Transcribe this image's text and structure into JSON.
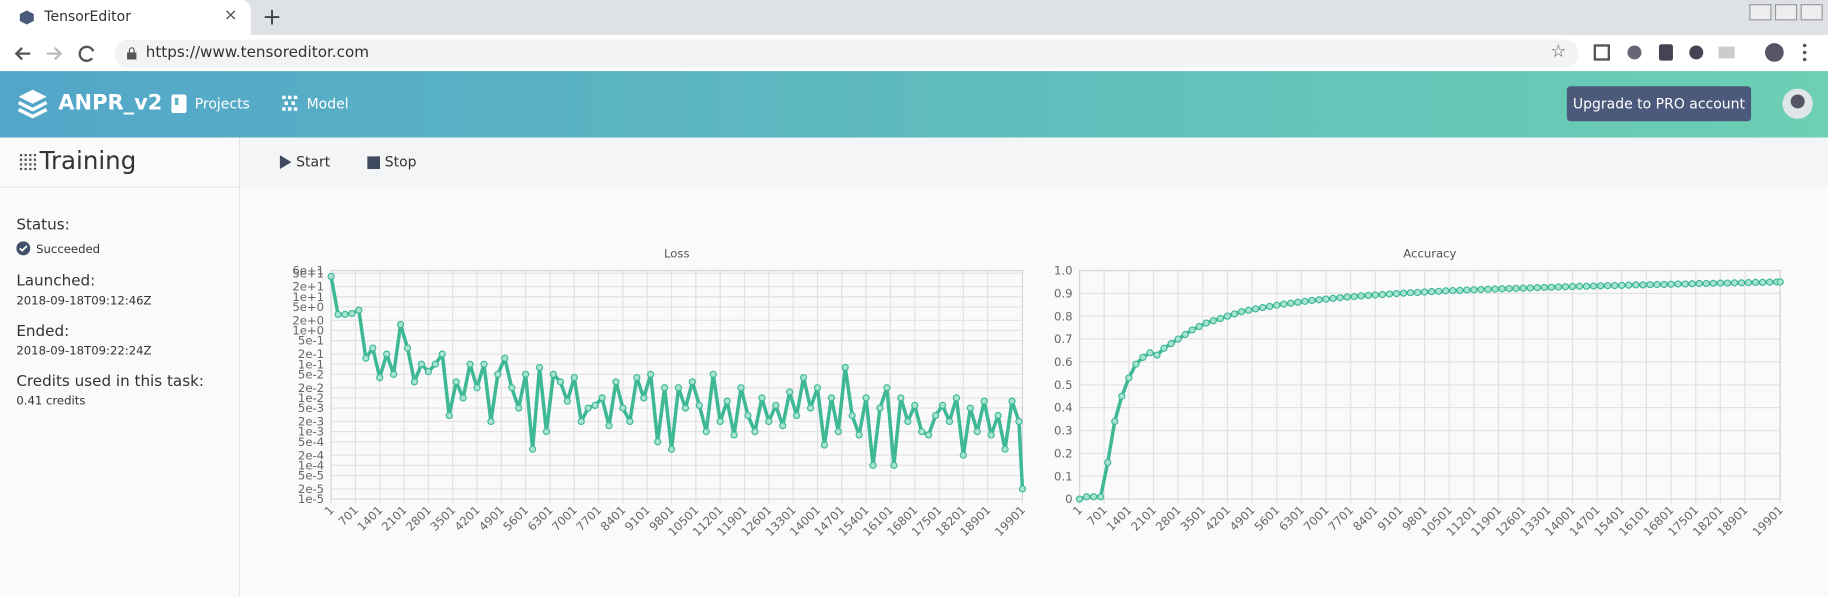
{
  "browser": {
    "tab_title": "TensorEditor",
    "url": "https://www.tensoreditor.com"
  },
  "header": {
    "project": "ANPR_v2",
    "nav": [
      "Projects",
      "Model"
    ],
    "upgrade_button": "Upgrade to PRO account"
  },
  "toolbar": {
    "start": "Start",
    "stop": "Stop"
  },
  "sidebar": {
    "title": "Training",
    "status_label": "Status:",
    "status": "Succeeded",
    "launched_label": "Launched:",
    "launched": "2018-09-18T09:12:46Z",
    "ended_label": "Ended:",
    "ended": "2018-09-18T09:22:24Z",
    "credits_label": "Credits used in this task:",
    "credits": "0.41 credits"
  },
  "chart_data": [
    {
      "type": "line",
      "title": "Loss",
      "color": "#3fb896",
      "markers": true,
      "grid": true,
      "log_scale": true,
      "x": [
        1,
        201,
        401,
        601,
        801,
        1001,
        1201,
        1401,
        1601,
        1801,
        2001,
        2201,
        2401,
        2601,
        2801,
        3001,
        3201,
        3401,
        3601,
        3801,
        4001,
        4201,
        4401,
        4601,
        4801,
        5001,
        5201,
        5401,
        5601,
        5801,
        6001,
        6201,
        6401,
        6601,
        6801,
        7001,
        7201,
        7401,
        7601,
        7801,
        8001,
        8201,
        8401,
        8601,
        8801,
        9001,
        9201,
        9401,
        9601,
        9801,
        10001,
        10201,
        10401,
        10601,
        10801,
        11001,
        11201,
        11401,
        11601,
        11801,
        12001,
        12201,
        12401,
        12601,
        12801,
        13001,
        13201,
        13401,
        13601,
        13801,
        14001,
        14201,
        14401,
        14601,
        14801,
        15001,
        15201,
        15401,
        15601,
        15801,
        16001,
        16201,
        16401,
        16601,
        16801,
        17001,
        17201,
        17401,
        17601,
        17801,
        18001,
        18201,
        18401,
        18601,
        18801,
        19001,
        19201,
        19401,
        19601,
        19801,
        19901
      ],
      "values": [
        40,
        3,
        3,
        3.2,
        4,
        0.15,
        0.3,
        0.04,
        0.2,
        0.05,
        1.5,
        0.3,
        0.03,
        0.1,
        0.06,
        0.1,
        0.2,
        0.003,
        0.03,
        0.01,
        0.1,
        0.02,
        0.1,
        0.002,
        0.05,
        0.15,
        0.02,
        0.005,
        0.05,
        0.0003,
        0.08,
        0.001,
        0.05,
        0.03,
        0.008,
        0.04,
        0.002,
        0.005,
        0.006,
        0.01,
        0.0015,
        0.03,
        0.005,
        0.002,
        0.04,
        0.01,
        0.05,
        0.0005,
        0.02,
        0.0003,
        0.02,
        0.005,
        0.03,
        0.006,
        0.001,
        0.05,
        0.002,
        0.008,
        0.0008,
        0.02,
        0.003,
        0.001,
        0.01,
        0.002,
        0.006,
        0.0015,
        0.015,
        0.003,
        0.04,
        0.005,
        0.02,
        0.0004,
        0.01,
        0.001,
        0.08,
        0.003,
        0.0008,
        0.01,
        0.0001,
        0.005,
        0.02,
        0.0001,
        0.01,
        0.002,
        0.006,
        0.001,
        0.0008,
        0.003,
        0.006,
        0.002,
        0.01,
        0.0002,
        0.005,
        0.001,
        0.008,
        0.0008,
        0.003,
        0.0003,
        0.008,
        0.002,
        2e-05
      ],
      "xlim": [
        1,
        19901
      ],
      "xticks": [
        1,
        701,
        1401,
        2101,
        2801,
        3501,
        4201,
        4901,
        5601,
        6301,
        7001,
        7701,
        8401,
        9101,
        9801,
        10501,
        11201,
        11901,
        12601,
        13301,
        14001,
        14701,
        15401,
        16101,
        16801,
        17501,
        18201,
        18901,
        19901
      ],
      "ylim": [
        1e-05,
        60
      ],
      "yticks": [
        {
          "value": 60,
          "label": "6e+1"
        },
        {
          "value": 50,
          "label": "5e+1"
        },
        {
          "value": 20,
          "label": "2e+1"
        },
        {
          "value": 10,
          "label": "1e+1"
        },
        {
          "value": 5,
          "label": "5e+0"
        },
        {
          "value": 2,
          "label": "2e+0"
        },
        {
          "value": 1,
          "label": "1e+0"
        },
        {
          "value": 0.5,
          "label": "5e-1"
        },
        {
          "value": 0.2,
          "label": "2e-1"
        },
        {
          "value": 0.1,
          "label": "1e-1"
        },
        {
          "value": 0.05,
          "label": "5e-2"
        },
        {
          "value": 0.02,
          "label": "2e-2"
        },
        {
          "value": 0.01,
          "label": "1e-2"
        },
        {
          "value": 0.005,
          "label": "5e-3"
        },
        {
          "value": 0.002,
          "label": "2e-3"
        },
        {
          "value": 0.001,
          "label": "1e-3"
        },
        {
          "value": 0.0005,
          "label": "5e-4"
        },
        {
          "value": 0.0002,
          "label": "2e-4"
        },
        {
          "value": 0.0001,
          "label": "1e-4"
        },
        {
          "value": 5e-05,
          "label": "5e-5"
        },
        {
          "value": 2e-05,
          "label": "2e-5"
        },
        {
          "value": 1e-05,
          "label": "1e-5"
        }
      ]
    },
    {
      "type": "line",
      "title": "Accuracy",
      "color": "#3fb896",
      "markers": true,
      "grid": true,
      "log_scale": false,
      "x": [
        1,
        201,
        401,
        601,
        801,
        1001,
        1201,
        1401,
        1601,
        1801,
        2001,
        2201,
        2401,
        2601,
        2801,
        3001,
        3201,
        3401,
        3601,
        3801,
        4001,
        4201,
        4401,
        4601,
        4801,
        5001,
        5201,
        5401,
        5601,
        5801,
        6001,
        6201,
        6401,
        6601,
        6801,
        7001,
        7201,
        7401,
        7601,
        7801,
        8001,
        8201,
        8401,
        8601,
        8801,
        9001,
        9201,
        9401,
        9601,
        9801,
        10001,
        10201,
        10401,
        10601,
        10801,
        11001,
        11201,
        11401,
        11601,
        11801,
        12001,
        12201,
        12401,
        12601,
        12801,
        13001,
        13201,
        13401,
        13601,
        13801,
        14001,
        14201,
        14401,
        14601,
        14801,
        15001,
        15201,
        15401,
        15601,
        15801,
        16001,
        16201,
        16401,
        16601,
        16801,
        17001,
        17201,
        17401,
        17601,
        17801,
        18001,
        18201,
        18401,
        18601,
        18801,
        19001,
        19201,
        19401,
        19601,
        19801,
        19901
      ],
      "values": [
        0,
        0.01,
        0.01,
        0.01,
        0.16,
        0.34,
        0.45,
        0.53,
        0.59,
        0.62,
        0.64,
        0.63,
        0.66,
        0.68,
        0.7,
        0.72,
        0.74,
        0.755,
        0.77,
        0.78,
        0.79,
        0.8,
        0.81,
        0.82,
        0.826,
        0.832,
        0.838,
        0.843,
        0.848,
        0.853,
        0.857,
        0.861,
        0.865,
        0.869,
        0.872,
        0.875,
        0.878,
        0.881,
        0.884,
        0.886,
        0.889,
        0.891,
        0.893,
        0.895,
        0.897,
        0.899,
        0.901,
        0.903,
        0.904,
        0.906,
        0.908,
        0.909,
        0.911,
        0.912,
        0.913,
        0.915,
        0.916,
        0.917,
        0.918,
        0.919,
        0.92,
        0.921,
        0.922,
        0.923,
        0.924,
        0.925,
        0.926,
        0.927,
        0.928,
        0.929,
        0.93,
        0.931,
        0.931,
        0.932,
        0.933,
        0.934,
        0.934,
        0.935,
        0.936,
        0.937,
        0.937,
        0.938,
        0.939,
        0.939,
        0.94,
        0.941,
        0.941,
        0.942,
        0.943,
        0.943,
        0.944,
        0.945,
        0.945,
        0.946,
        0.946,
        0.947,
        0.948,
        0.948,
        0.949,
        0.95,
        0.95
      ],
      "xlim": [
        1,
        19901
      ],
      "xticks": [
        1,
        701,
        1401,
        2101,
        2801,
        3501,
        4201,
        4901,
        5601,
        6301,
        7001,
        7701,
        8401,
        9101,
        9801,
        10501,
        11201,
        11901,
        12601,
        13301,
        14001,
        14701,
        15401,
        16101,
        16801,
        17501,
        18201,
        18901,
        19901
      ],
      "ylim": [
        0,
        1
      ],
      "yticks": [
        0,
        0.1,
        0.2,
        0.3,
        0.4,
        0.5,
        0.6,
        0.7,
        0.8,
        0.9,
        {
          "value": 1,
          "label": "1.0"
        }
      ]
    }
  ]
}
